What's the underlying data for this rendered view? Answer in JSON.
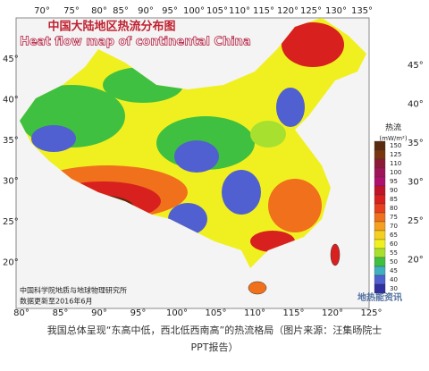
{
  "map": {
    "title_cn": "中国大陆地区热流分布图",
    "title_en": "Heat flow map of continental China",
    "top_lon_labels": [
      "70°",
      "75°",
      "80°",
      "85°",
      "90°",
      "95°",
      "100°",
      "105°",
      "110°",
      "115°",
      "120°",
      "125°",
      "130°",
      "135°"
    ],
    "bottom_lon_labels": [
      "80°",
      "85°",
      "90°",
      "95°",
      "100°",
      "105°",
      "110°",
      "115°",
      "120°",
      "125°"
    ],
    "left_lat_labels": [
      "45°",
      "40°",
      "35°",
      "30°",
      "25°",
      "20°"
    ],
    "right_lat_labels": [
      "45°",
      "40°",
      "35°",
      "30°",
      "25°",
      "20°"
    ],
    "legend": {
      "title": "热流",
      "unit": "(mW/m²)",
      "levels": [
        150,
        125,
        110,
        100,
        95,
        90,
        85,
        80,
        75,
        70,
        65,
        60,
        55,
        50,
        45,
        40,
        30
      ],
      "colors": [
        "#5a2a10",
        "#7a3510",
        "#8e1a3a",
        "#a0155a",
        "#b01070",
        "#c0142a",
        "#d8201e",
        "#e8401c",
        "#f0701c",
        "#f5a020",
        "#f5d020",
        "#f0f020",
        "#a8e030",
        "#40c040",
        "#40b0c0",
        "#5060d0",
        "#3030a0"
      ]
    },
    "credit": [
      "中国科学院地质与地球物理研究所",
      "数据更新至2016年6月"
    ],
    "watermark": "地热能资讯"
  },
  "caption": [
    "我国总体呈现“东高中低，西北低西南高”的热流格局（图片来源：汪集旸院士",
    "PPT报告）"
  ]
}
